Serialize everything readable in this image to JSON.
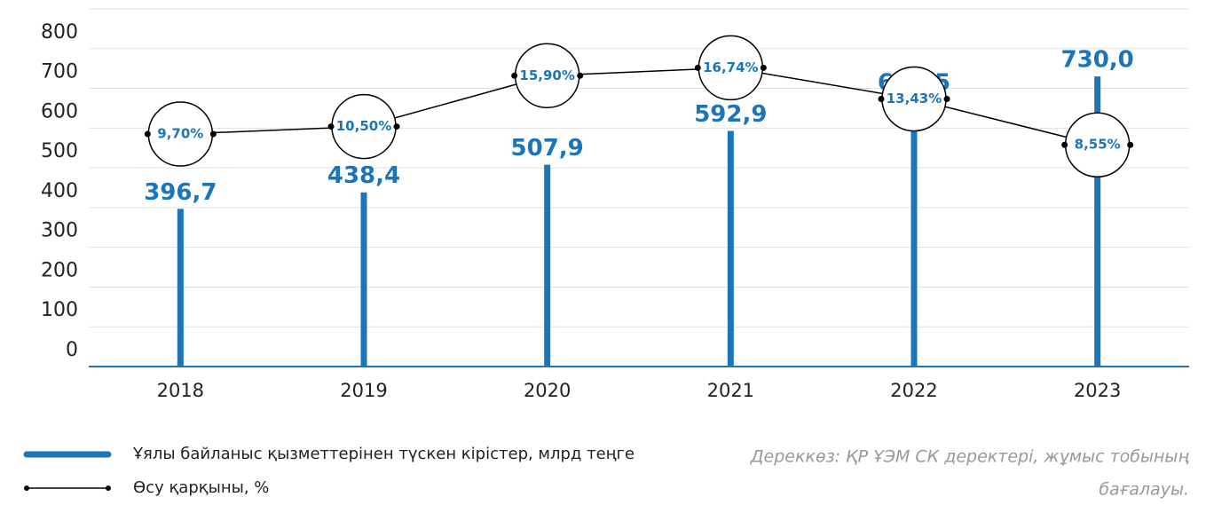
{
  "chart_data": {
    "type": "bar_line",
    "categories": [
      "2018",
      "2019",
      "2020",
      "2021",
      "2022",
      "2023"
    ],
    "series": [
      {
        "name": "Ұялы байланыс қызметтерінен түскен кірістер, млрд теңге",
        "color": "#1b75bb",
        "values": [
          396.7,
          438.4,
          507.9,
          592.9,
          672.5,
          730.0
        ],
        "value_labels": [
          "396,7",
          "438,4",
          "507,9",
          "592,9",
          "672,5",
          "730,0"
        ]
      },
      {
        "name": "Өсу қарқыны, %",
        "color": "#000000",
        "axis": "y2",
        "values": [
          9.7,
          10.5,
          15.9,
          16.74,
          13.43,
          8.55
        ],
        "value_labels": [
          "9,70%",
          "10,50%",
          "15,90%",
          "16,74%",
          "13,43%",
          "8,55%"
        ]
      }
    ],
    "ylim": [
      0,
      900
    ],
    "yticks": [
      0,
      100,
      200,
      300,
      400,
      500,
      600,
      700,
      800
    ],
    "y2lim": [
      -15,
      23
    ],
    "grid": true,
    "source": [
      "Дереккөз: ҚР ҰЭМ СК деректері, жұмыс тобының",
      "бағалауы."
    ]
  }
}
